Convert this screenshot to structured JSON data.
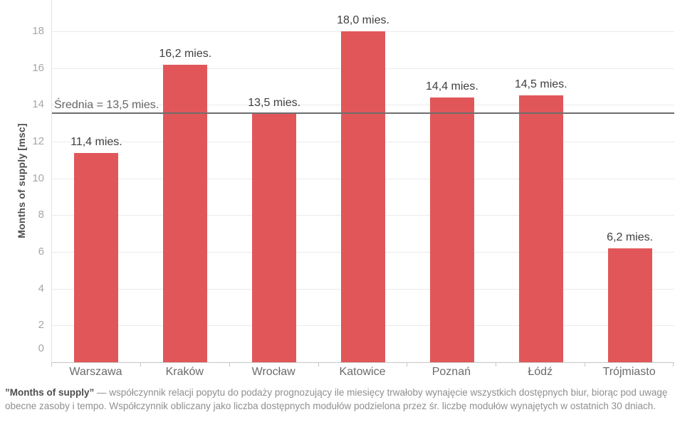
{
  "chart_data": {
    "type": "bar",
    "title": "",
    "categories": [
      "Warszawa",
      "Kraków",
      "Wrocław",
      "Katowice",
      "Poznań",
      "Łódź",
      "Trójmiasto"
    ],
    "values": [
      11.4,
      16.2,
      13.5,
      18.0,
      14.4,
      14.5,
      6.2
    ],
    "bar_labels": [
      "11,4 mies.",
      "16,2 mies.",
      "13,5 mies.",
      "18,0 mies.",
      "14,4 mies.",
      "14,5 mies.",
      "6,2 mies."
    ],
    "xlabel": "",
    "ylabel": "Months of supply [msc]",
    "y_ticks": [
      0,
      2,
      4,
      6,
      8,
      10,
      12,
      14,
      16,
      18
    ],
    "ylim": [
      0,
      18
    ],
    "grid": true,
    "legend": "none",
    "reference_line": {
      "value": 13.5,
      "label": "Średnia = 13,5 mies."
    },
    "colors": {
      "bar": "#e15759",
      "gridline": "#ebebeb",
      "reference_line": "#6e6e6e",
      "axis_line": "#c6c6c6"
    }
  },
  "footnote": {
    "bold": "”Months of supply”",
    "text": " — współczynnik relacji popytu do podaży prognozujący ile miesięcy trwałoby wynajęcie wszystkich dostępnych biur, biorąc pod uwagę obecne zasoby i tempo. Współczynnik obliczany jako liczba dostępnych modułów podzielona przez śr. liczbę modułów wynajętych w ostatnich 30 dniach."
  }
}
